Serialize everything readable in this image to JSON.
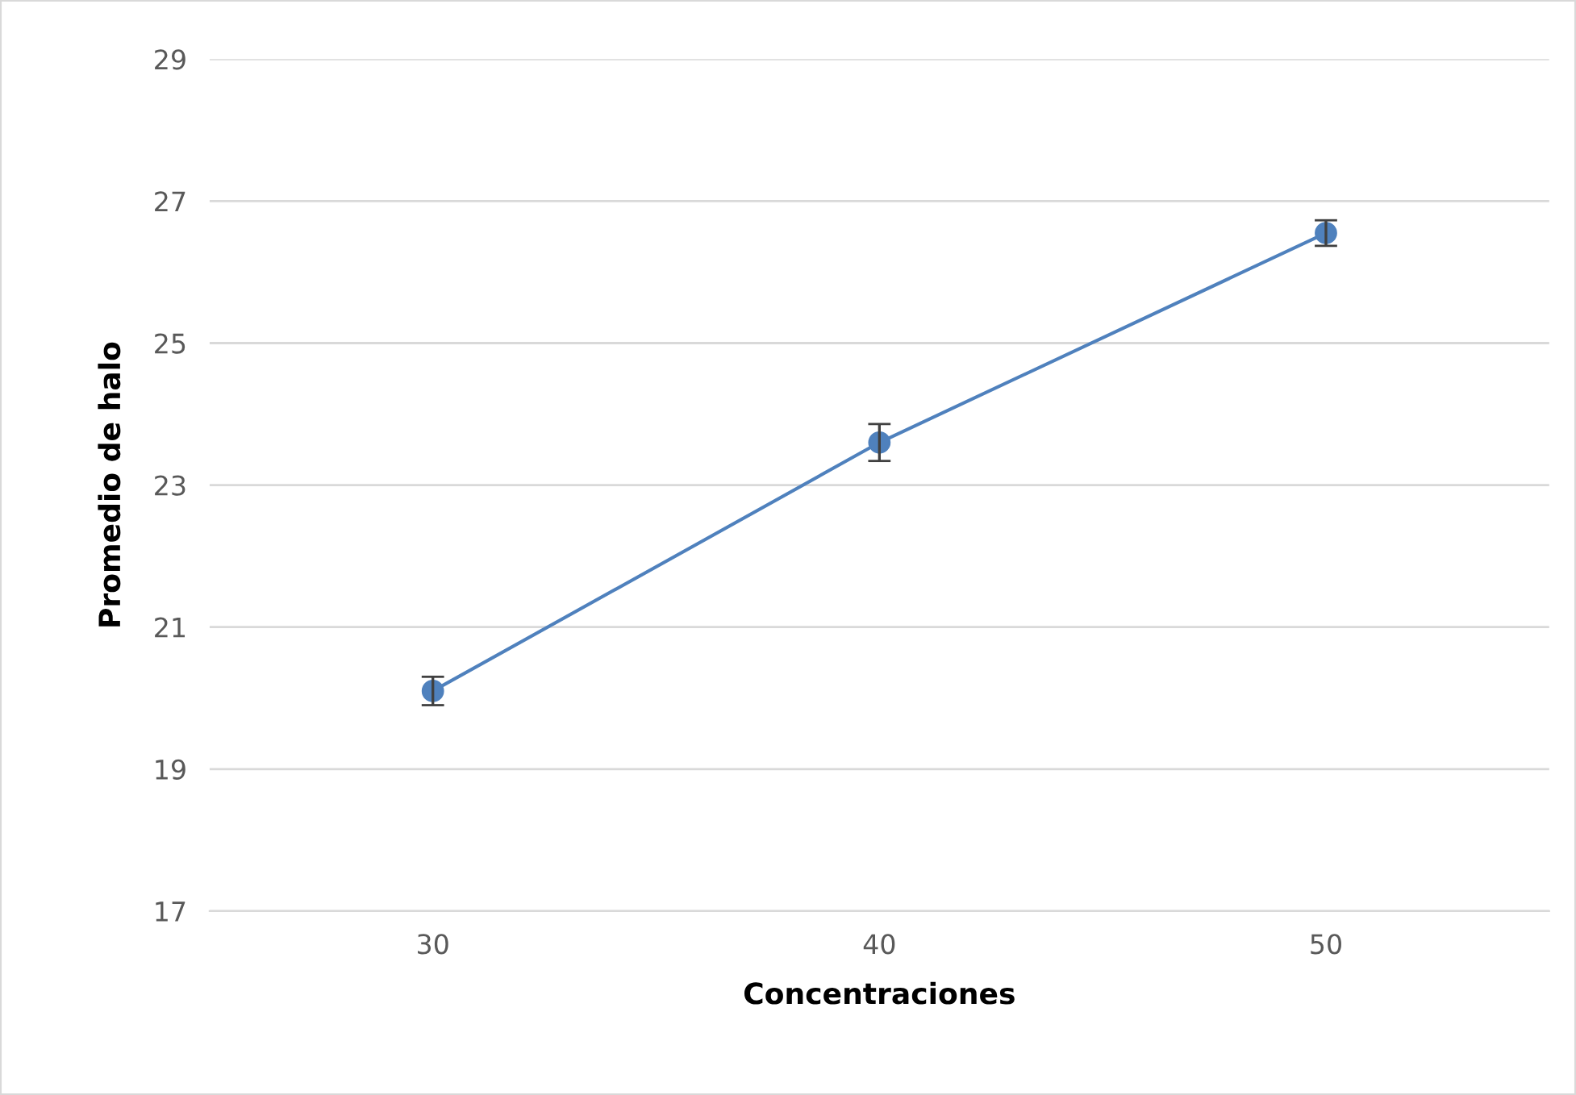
{
  "chart_data": {
    "type": "line",
    "xlabel": "Concentraciones",
    "ylabel": "Promedio de halo",
    "categories": [
      "30",
      "40",
      "50"
    ],
    "series": [
      {
        "color": "#4f81bd",
        "values": [
          20.1,
          23.6,
          26.55
        ],
        "errors": [
          0.2,
          0.26,
          0.18
        ]
      }
    ],
    "ylim": [
      17,
      29
    ],
    "yticks": [
      17,
      19,
      21,
      23,
      25,
      27,
      29
    ],
    "grid": "y",
    "marker": "circle",
    "line_style": "solid",
    "legend": false
  }
}
